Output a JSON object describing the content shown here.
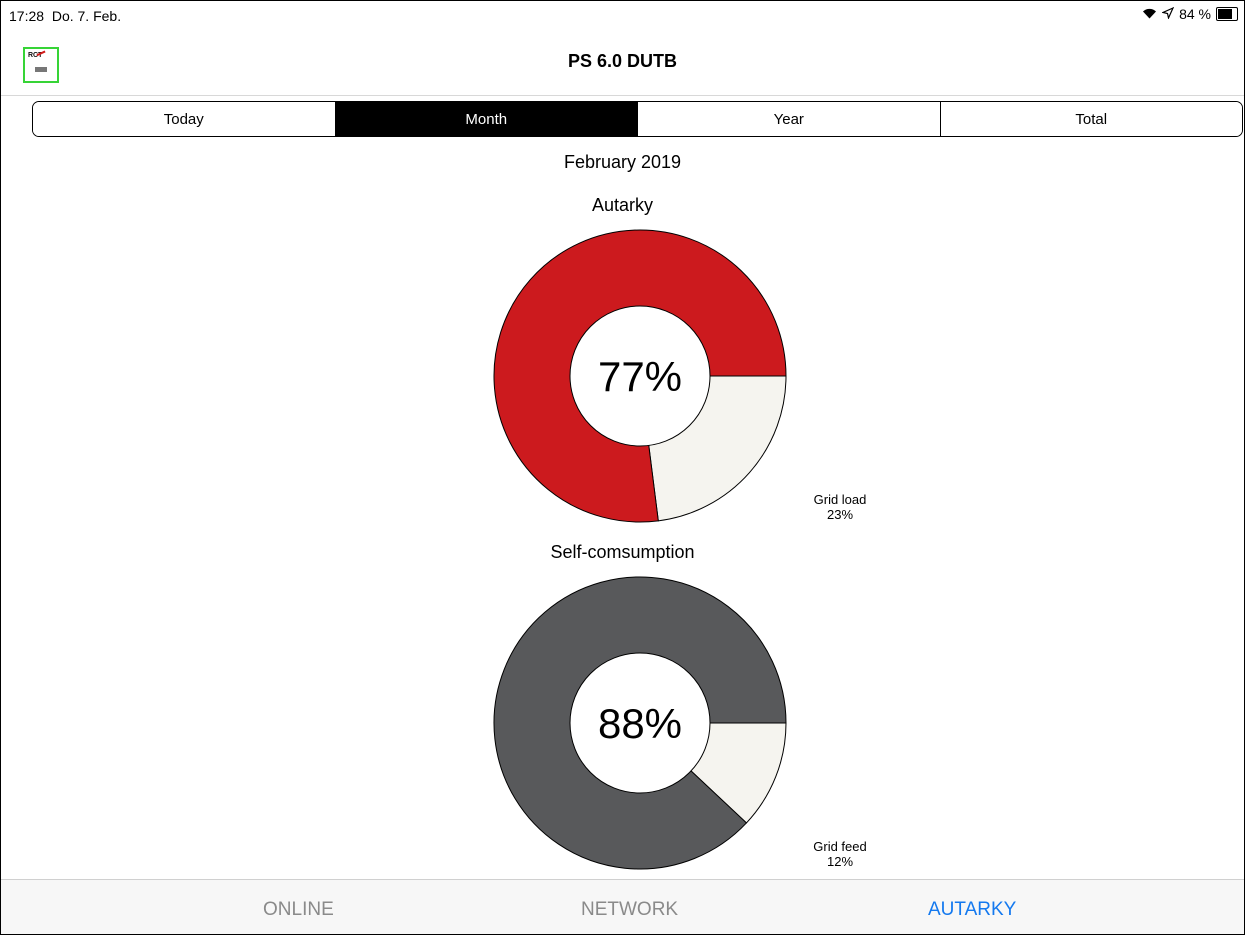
{
  "status": {
    "time": "17:28",
    "date": "Do. 7. Feb.",
    "battery": "84 %",
    "battery_level": 0.84
  },
  "nav": {
    "title": "PS 6.0 DUTB",
    "logo_text": "RCT"
  },
  "segments": [
    "Today",
    "Month",
    "Year",
    "Total"
  ],
  "selected_segment": "Month",
  "period": "February 2019",
  "chart_data": [
    {
      "type": "pie",
      "title": "Autarky",
      "center_label": "77%",
      "slices": [
        {
          "name": "Autarky",
          "value": 77,
          "color": "#cc1a1e"
        },
        {
          "name": "Grid load",
          "value": 23,
          "color": "#f5f4ef"
        }
      ],
      "annotation": {
        "label": "Grid load",
        "value": "23%"
      }
    },
    {
      "type": "pie",
      "title": "Self-comsumption",
      "center_label": "88%",
      "slices": [
        {
          "name": "Self-comsumption",
          "value": 88,
          "color": "#58595b"
        },
        {
          "name": "Grid feed",
          "value": 12,
          "color": "#f5f4ef"
        }
      ],
      "annotation": {
        "label": "Grid feed",
        "value": "12%"
      }
    }
  ],
  "tabs": [
    {
      "label": "ONLINE",
      "active": false
    },
    {
      "label": "NETWORK",
      "active": false
    },
    {
      "label": "AUTARKY",
      "active": true
    }
  ],
  "colors": {
    "active_tab": "#1479ef",
    "inactive_tab": "#8a8a8a",
    "logo_border": "#36d436"
  }
}
